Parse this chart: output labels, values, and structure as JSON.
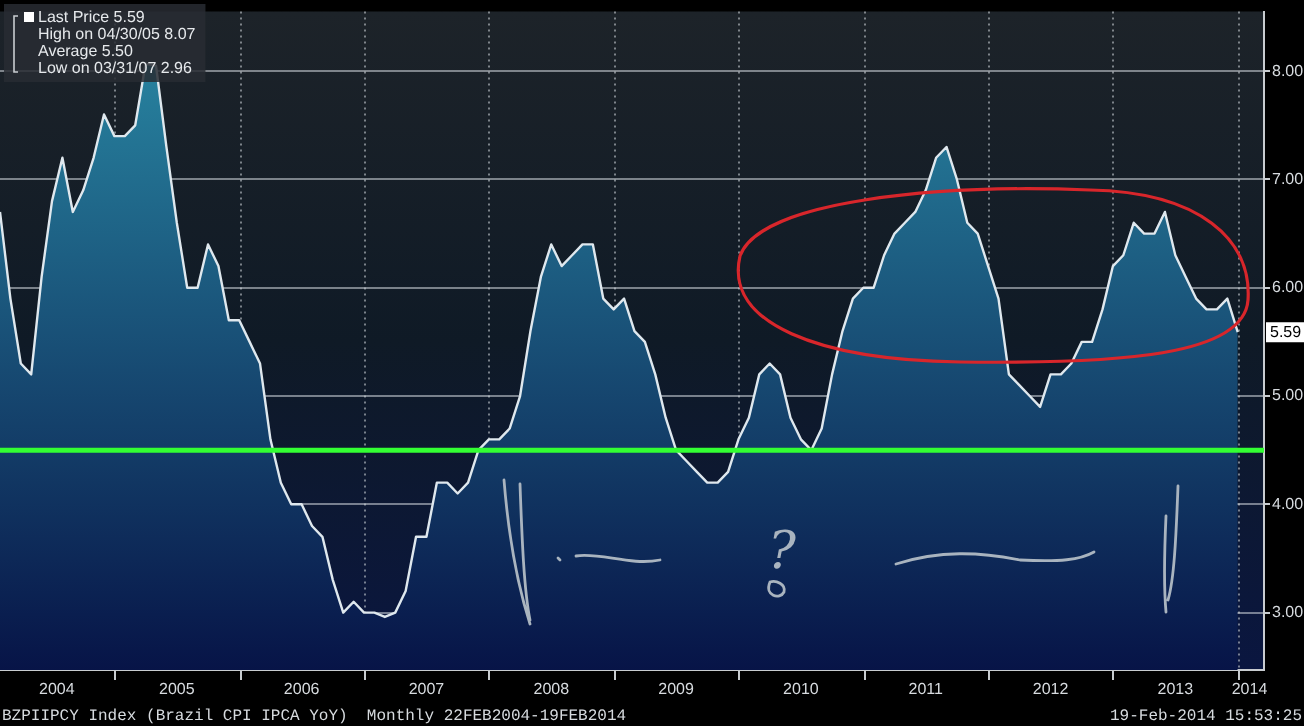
{
  "chart_data": {
    "type": "area",
    "legend": false,
    "grid": true,
    "marker": "none",
    "x": [
      "2004-02",
      "2004-03",
      "2004-04",
      "2004-05",
      "2004-06",
      "2004-07",
      "2004-08",
      "2004-09",
      "2004-10",
      "2004-11",
      "2004-12",
      "2005-01",
      "2005-02",
      "2005-03",
      "2005-04",
      "2005-05",
      "2005-06",
      "2005-07",
      "2005-08",
      "2005-09",
      "2005-10",
      "2005-11",
      "2005-12",
      "2006-01",
      "2006-02",
      "2006-03",
      "2006-04",
      "2006-05",
      "2006-06",
      "2006-07",
      "2006-08",
      "2006-09",
      "2006-10",
      "2006-11",
      "2006-12",
      "2007-01",
      "2007-02",
      "2007-03",
      "2007-04",
      "2007-05",
      "2007-06",
      "2007-07",
      "2007-08",
      "2007-09",
      "2007-10",
      "2007-11",
      "2007-12",
      "2008-01",
      "2008-02",
      "2008-03",
      "2008-04",
      "2008-05",
      "2008-06",
      "2008-07",
      "2008-08",
      "2008-09",
      "2008-10",
      "2008-11",
      "2008-12",
      "2009-01",
      "2009-02",
      "2009-03",
      "2009-04",
      "2009-05",
      "2009-06",
      "2009-07",
      "2009-08",
      "2009-09",
      "2009-10",
      "2009-11",
      "2009-12",
      "2010-01",
      "2010-02",
      "2010-03",
      "2010-04",
      "2010-05",
      "2010-06",
      "2010-07",
      "2010-08",
      "2010-09",
      "2010-10",
      "2010-11",
      "2010-12",
      "2011-01",
      "2011-02",
      "2011-03",
      "2011-04",
      "2011-05",
      "2011-06",
      "2011-07",
      "2011-08",
      "2011-09",
      "2011-10",
      "2011-11",
      "2011-12",
      "2012-01",
      "2012-02",
      "2012-03",
      "2012-04",
      "2012-05",
      "2012-06",
      "2012-07",
      "2012-08",
      "2012-09",
      "2012-10",
      "2012-11",
      "2012-12",
      "2013-01",
      "2013-02",
      "2013-03",
      "2013-04",
      "2013-05",
      "2013-06",
      "2013-07",
      "2013-08",
      "2013-09",
      "2013-10",
      "2013-11",
      "2013-12",
      "2014-01"
    ],
    "series": [
      {
        "color": "#2a8ba6",
        "values": [
          6.7,
          5.9,
          5.3,
          5.2,
          6.1,
          6.8,
          7.2,
          6.7,
          6.9,
          7.2,
          7.6,
          7.4,
          7.4,
          7.5,
          8.07,
          8.05,
          7.3,
          6.6,
          6.0,
          6.0,
          6.4,
          6.2,
          5.7,
          5.7,
          5.5,
          5.3,
          4.6,
          4.2,
          4.0,
          4.0,
          3.8,
          3.7,
          3.3,
          3.0,
          3.1,
          3.0,
          3.0,
          2.96,
          3.0,
          3.2,
          3.7,
          3.7,
          4.2,
          4.2,
          4.1,
          4.2,
          4.5,
          4.6,
          4.6,
          4.7,
          5.0,
          5.6,
          6.1,
          6.4,
          6.2,
          6.3,
          6.4,
          6.4,
          5.9,
          5.8,
          5.9,
          5.6,
          5.5,
          5.2,
          4.8,
          4.5,
          4.4,
          4.3,
          4.2,
          4.2,
          4.3,
          4.6,
          4.8,
          5.2,
          5.3,
          5.2,
          4.8,
          4.6,
          4.5,
          4.7,
          5.2,
          5.6,
          5.9,
          6.0,
          6.0,
          6.3,
          6.5,
          6.6,
          6.7,
          6.9,
          7.2,
          7.3,
          7.0,
          6.6,
          6.5,
          6.2,
          5.9,
          5.2,
          5.1,
          5.0,
          4.9,
          5.2,
          5.2,
          5.3,
          5.5,
          5.5,
          5.8,
          6.2,
          6.3,
          6.6,
          6.5,
          6.5,
          6.7,
          6.3,
          6.1,
          5.9,
          5.8,
          5.8,
          5.9,
          5.59
        ]
      }
    ],
    "xlim": [
      "2004-02",
      "2014-03-17"
    ],
    "xticks": [
      {
        "value": "2004-07-15",
        "label": "2004"
      },
      {
        "value": "2005-01-01",
        "label": null
      },
      {
        "value": "2005-07-01",
        "label": "2005"
      },
      {
        "value": "2006-01-01",
        "label": null
      },
      {
        "value": "2006-07-01",
        "label": "2006"
      },
      {
        "value": "2007-01-01",
        "label": null
      },
      {
        "value": "2007-07-01",
        "label": "2007"
      },
      {
        "value": "2008-01-01",
        "label": null
      },
      {
        "value": "2008-07-01",
        "label": "2008"
      },
      {
        "value": "2009-01-01",
        "label": null
      },
      {
        "value": "2009-07-01",
        "label": "2009"
      },
      {
        "value": "2010-01-01",
        "label": null
      },
      {
        "value": "2010-07-01",
        "label": "2010"
      },
      {
        "value": "2011-01-01",
        "label": null
      },
      {
        "value": "2011-07-01",
        "label": "2011"
      },
      {
        "value": "2012-01-01",
        "label": null
      },
      {
        "value": "2012-07-01",
        "label": "2012"
      },
      {
        "value": "2013-01-01",
        "label": null
      },
      {
        "value": "2013-07-01",
        "label": "2013"
      },
      {
        "value": "2014-01-01",
        "label": null
      },
      {
        "value": "2014-02-05",
        "label": "2014"
      }
    ],
    "ylim": [
      2.47,
      8.55
    ],
    "yticks": [
      {
        "value": 3,
        "label": "3.00"
      },
      {
        "value": 4,
        "label": "4.00"
      },
      {
        "value": 5,
        "label": "5.00"
      },
      {
        "value": 6,
        "label": "6.00"
      },
      {
        "value": 7,
        "label": "7.00"
      },
      {
        "value": 8,
        "label": "8.00"
      }
    ],
    "ref_lines": [
      {
        "axis": "y",
        "value": 4.5,
        "label": null,
        "color": "#33ff33"
      }
    ],
    "annotations": [
      "Last Price 5.59",
      "High on 04/30/05 8.07",
      "Average 5.50",
      "Low on 03/31/07 2.96",
      "?",
      "BZPIIPCY Index (Brazil CPI IPCA YoY)  Monthly 22FEB2004-19FEB2014",
      "19-Feb-2014 15:53:25",
      {
        "text": "5.59",
        "x": "2014-01",
        "y": 5.59
      }
    ]
  }
}
